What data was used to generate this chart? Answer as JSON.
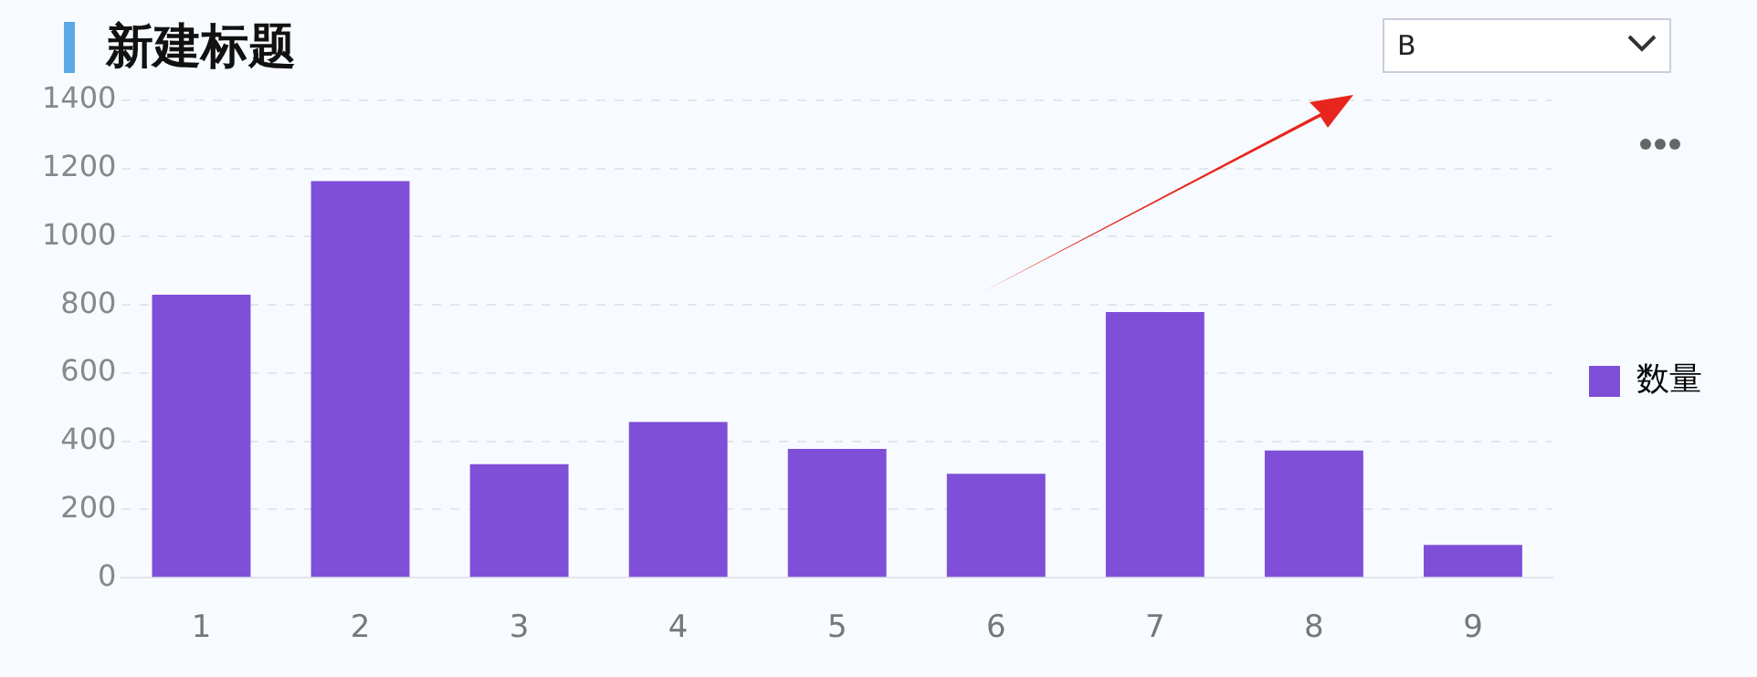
{
  "chart_data": {
    "type": "bar",
    "title": "新建标题",
    "categories": [
      "1",
      "2",
      "3",
      "4",
      "5",
      "6",
      "7",
      "8",
      "9"
    ],
    "series": [
      {
        "name": "数量",
        "color": "#7f4fd8",
        "values": [
          830,
          1163,
          333,
          457,
          378,
          305,
          779,
          373,
          96
        ]
      }
    ],
    "ylim": [
      0,
      1400
    ],
    "yticks": [
      0,
      200,
      400,
      600,
      800,
      1000,
      1200,
      1400
    ],
    "grid": "y",
    "legend": "right",
    "annotations": [
      "B"
    ]
  }
}
